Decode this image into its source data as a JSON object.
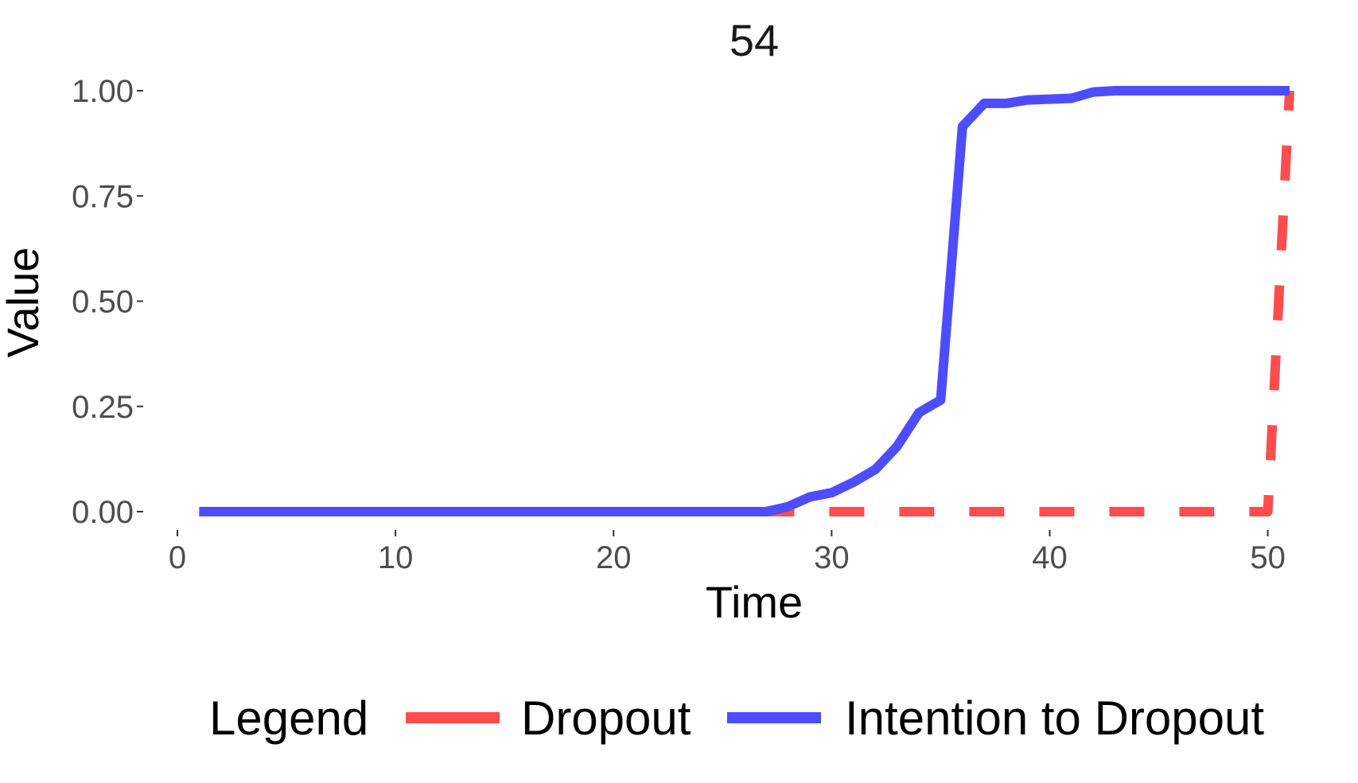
{
  "chart_data": {
    "type": "line",
    "title": "54",
    "xlabel": "Time",
    "ylabel": "Value",
    "xlim": [
      0,
      51
    ],
    "ylim": [
      0,
      1
    ],
    "x_ticks": [
      0,
      10,
      20,
      30,
      40,
      50
    ],
    "y_ticks": [
      0.0,
      0.25,
      0.5,
      0.75,
      1.0
    ],
    "y_tick_labels": [
      "0.00",
      "0.25",
      "0.50",
      "0.75",
      "1.00"
    ],
    "grid": false,
    "legend": {
      "title": "Legend",
      "placement": "bottom",
      "entries": [
        "Dropout",
        "Intention to Dropout"
      ]
    },
    "series": [
      {
        "name": "Dropout",
        "color": "#FF4D4D",
        "line_style": "dashed",
        "x": [
          1,
          50,
          51
        ],
        "y": [
          0,
          0,
          1
        ]
      },
      {
        "name": "Intention to Dropout",
        "color": "#4D4DFF",
        "line_style": "solid",
        "x": [
          1,
          27,
          28,
          29,
          30,
          31,
          32,
          33,
          34,
          35,
          36,
          37,
          38,
          39,
          40,
          41,
          42,
          43,
          44,
          45,
          46,
          47,
          48,
          49,
          50,
          51
        ],
        "y": [
          0,
          0,
          0.012,
          0.035,
          0.045,
          0.07,
          0.1,
          0.155,
          0.235,
          0.265,
          0.915,
          0.97,
          0.97,
          0.978,
          0.98,
          0.982,
          0.997,
          1,
          1,
          1,
          1,
          1,
          1,
          1,
          1,
          1
        ]
      }
    ]
  }
}
